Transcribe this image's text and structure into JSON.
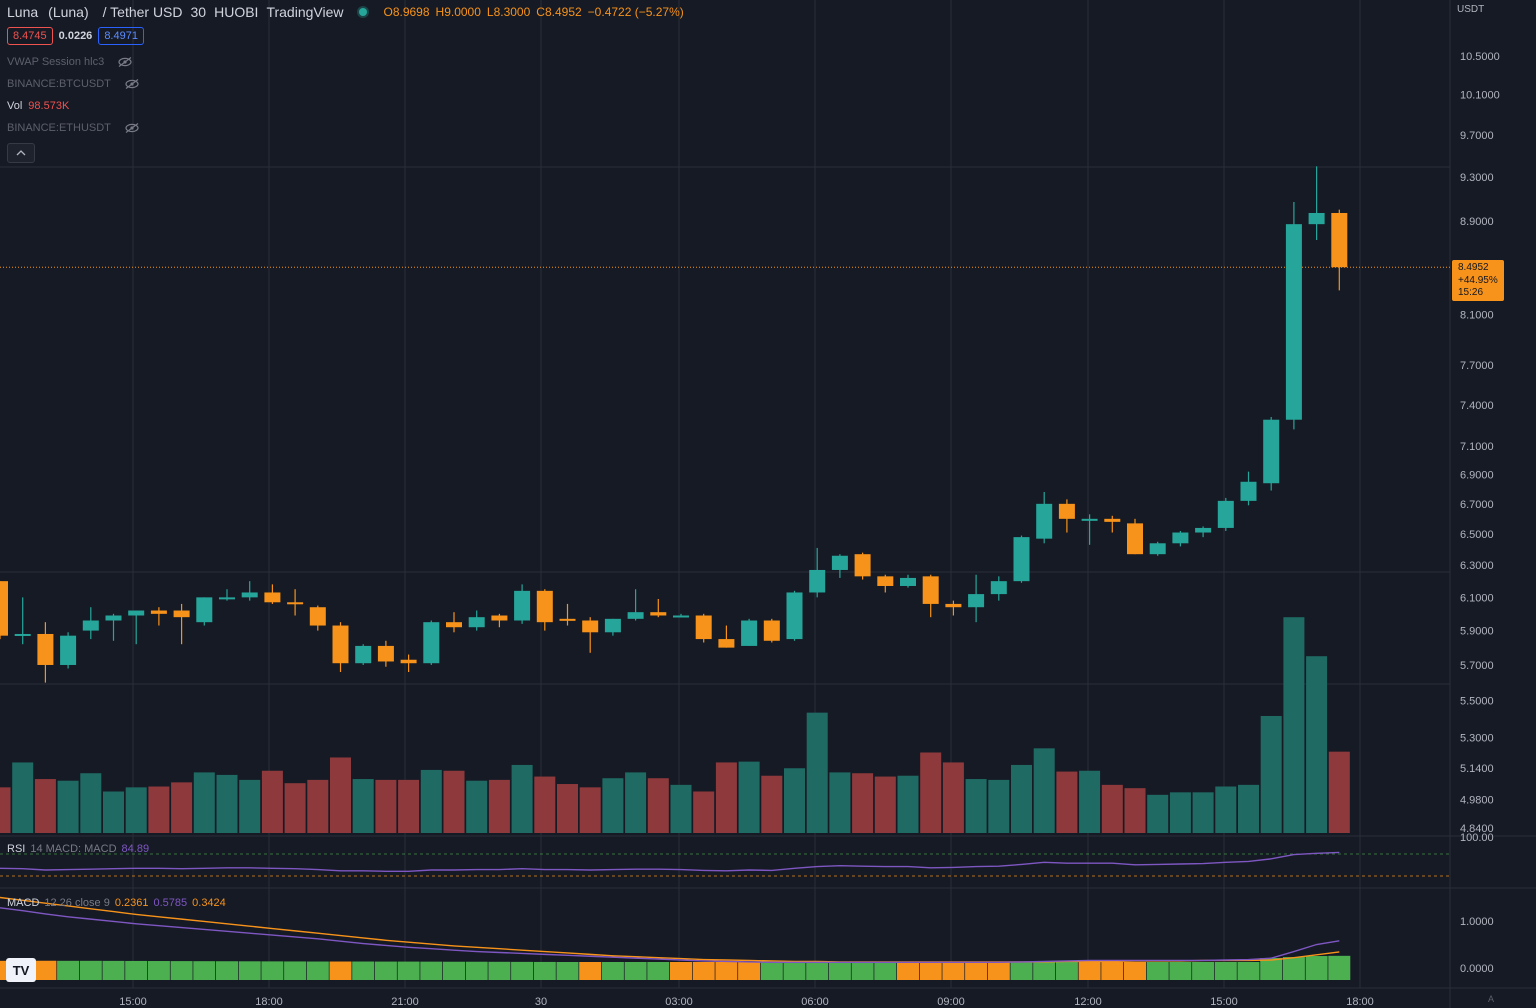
{
  "header": {
    "symbol": "Luna",
    "symbol_full": "(Luna)",
    "quote": "/ Tether USD",
    "interval": "30",
    "exchange": "HUOBI",
    "source": "TradingView",
    "ohlc": {
      "open": "O8.9698",
      "high": "H9.0000",
      "low": "L8.3000",
      "close": "C8.4952",
      "change": "−0.4722 (−5.27%)"
    },
    "bid": "8.4745",
    "spread": "0.0226",
    "ask": "8.4971"
  },
  "indicators": [
    {
      "label": "VWAP Session hlc3"
    },
    {
      "label": "BINANCE:BTCUSDT"
    },
    {
      "label": "BINANCE:ETHUSDT"
    }
  ],
  "volume_legend": {
    "label": "Vol",
    "value": "98.573K"
  },
  "rsi_legend": {
    "name": "RSI",
    "params": "14 MACD: MACD",
    "value": "84.89"
  },
  "macd_legend": {
    "name": "MACD",
    "params": "12 26 close 9",
    "hist": "0.2361",
    "macd": "0.5785",
    "signal": "0.3424"
  },
  "price_axis": {
    "currency": "USDT",
    "ticks": [
      "10.5000",
      "10.1000",
      "9.7000",
      "9.3000",
      "8.9000",
      "8.1000",
      "7.7000",
      "7.4000",
      "7.1000",
      "6.9000",
      "6.7000",
      "6.5000",
      "6.3000",
      "6.1000",
      "5.9000",
      "5.7000",
      "5.5000",
      "5.3000",
      "5.1400",
      "4.9800",
      "4.8400"
    ]
  },
  "rsi_axis": {
    "ticks": [
      "100.00"
    ]
  },
  "macd_axis": {
    "ticks": [
      "1.0000",
      "0.0000"
    ]
  },
  "time_axis": {
    "ticks": [
      "15:00",
      "18:00",
      "21:00",
      "30",
      "03:00",
      "06:00",
      "09:00",
      "12:00",
      "15:00",
      "18:00"
    ]
  },
  "last_price": {
    "price": "8.4952",
    "change": "+44.95%",
    "countdown": "15:26"
  },
  "auto_label": "A",
  "logo_text": "TV",
  "colors": {
    "up": "#26a69a",
    "down": "#f7931a",
    "vol_up": "#1f6b64",
    "vol_down": "#8e3a3c",
    "bg": "#161a25",
    "grid": "#2a2e39"
  },
  "chart_data": {
    "type": "candlestick",
    "interval": "30",
    "scale": "log",
    "y_range": [
      4.84,
      10.8
    ],
    "candles": [
      {
        "o": 6.2,
        "h": 6.2,
        "l": 5.85,
        "c": 5.87
      },
      {
        "o": 5.87,
        "h": 6.1,
        "l": 5.82,
        "c": 5.88
      },
      {
        "o": 5.88,
        "h": 5.95,
        "l": 5.6,
        "c": 5.7
      },
      {
        "o": 5.7,
        "h": 5.89,
        "l": 5.68,
        "c": 5.87
      },
      {
        "o": 5.9,
        "h": 6.04,
        "l": 5.85,
        "c": 5.96
      },
      {
        "o": 5.96,
        "h": 6.0,
        "l": 5.84,
        "c": 5.99
      },
      {
        "o": 5.99,
        "h": 6.02,
        "l": 5.82,
        "c": 6.02
      },
      {
        "o": 6.02,
        "h": 6.04,
        "l": 5.93,
        "c": 6.0
      },
      {
        "o": 6.02,
        "h": 6.06,
        "l": 5.82,
        "c": 5.98
      },
      {
        "o": 5.95,
        "h": 6.1,
        "l": 5.93,
        "c": 6.1
      },
      {
        "o": 6.1,
        "h": 6.15,
        "l": 6.08,
        "c": 6.1
      },
      {
        "o": 6.1,
        "h": 6.2,
        "l": 6.08,
        "c": 6.13
      },
      {
        "o": 6.13,
        "h": 6.18,
        "l": 6.06,
        "c": 6.07
      },
      {
        "o": 6.07,
        "h": 6.15,
        "l": 5.99,
        "c": 6.06
      },
      {
        "o": 6.04,
        "h": 6.05,
        "l": 5.9,
        "c": 5.93
      },
      {
        "o": 5.93,
        "h": 5.95,
        "l": 5.66,
        "c": 5.71
      },
      {
        "o": 5.71,
        "h": 5.82,
        "l": 5.7,
        "c": 5.81
      },
      {
        "o": 5.81,
        "h": 5.84,
        "l": 5.69,
        "c": 5.72
      },
      {
        "o": 5.73,
        "h": 5.76,
        "l": 5.66,
        "c": 5.71
      },
      {
        "o": 5.71,
        "h": 5.96,
        "l": 5.7,
        "c": 5.95
      },
      {
        "o": 5.95,
        "h": 6.01,
        "l": 5.89,
        "c": 5.92
      },
      {
        "o": 5.92,
        "h": 6.02,
        "l": 5.9,
        "c": 5.98
      },
      {
        "o": 5.99,
        "h": 6.0,
        "l": 5.92,
        "c": 5.96
      },
      {
        "o": 5.96,
        "h": 6.18,
        "l": 5.94,
        "c": 6.14
      },
      {
        "o": 6.14,
        "h": 6.15,
        "l": 5.9,
        "c": 5.95
      },
      {
        "o": 5.97,
        "h": 6.06,
        "l": 5.93,
        "c": 5.96
      },
      {
        "o": 5.96,
        "h": 5.98,
        "l": 5.77,
        "c": 5.89
      },
      {
        "o": 5.89,
        "h": 5.97,
        "l": 5.87,
        "c": 5.97
      },
      {
        "o": 5.97,
        "h": 6.15,
        "l": 5.96,
        "c": 6.01
      },
      {
        "o": 6.01,
        "h": 6.09,
        "l": 5.98,
        "c": 5.99
      },
      {
        "o": 5.99,
        "h": 6.0,
        "l": 5.99,
        "c": 5.99
      },
      {
        "o": 5.99,
        "h": 6.0,
        "l": 5.83,
        "c": 5.85
      },
      {
        "o": 5.85,
        "h": 5.93,
        "l": 5.8,
        "c": 5.8
      },
      {
        "o": 5.81,
        "h": 5.97,
        "l": 5.81,
        "c": 5.96
      },
      {
        "o": 5.96,
        "h": 5.97,
        "l": 5.83,
        "c": 5.84
      },
      {
        "o": 5.85,
        "h": 6.14,
        "l": 5.84,
        "c": 6.13
      },
      {
        "o": 6.13,
        "h": 6.41,
        "l": 6.1,
        "c": 6.27
      },
      {
        "o": 6.27,
        "h": 6.37,
        "l": 6.22,
        "c": 6.36
      },
      {
        "o": 6.37,
        "h": 6.38,
        "l": 6.21,
        "c": 6.23
      },
      {
        "o": 6.23,
        "h": 6.24,
        "l": 6.13,
        "c": 6.17
      },
      {
        "o": 6.17,
        "h": 6.24,
        "l": 6.16,
        "c": 6.22
      },
      {
        "o": 6.23,
        "h": 6.24,
        "l": 5.98,
        "c": 6.06
      },
      {
        "o": 6.06,
        "h": 6.08,
        "l": 5.99,
        "c": 6.04
      },
      {
        "o": 6.04,
        "h": 6.24,
        "l": 5.95,
        "c": 6.12
      },
      {
        "o": 6.12,
        "h": 6.23,
        "l": 6.08,
        "c": 6.2
      },
      {
        "o": 6.2,
        "h": 6.49,
        "l": 6.19,
        "c": 6.48
      },
      {
        "o": 6.47,
        "h": 6.78,
        "l": 6.44,
        "c": 6.7
      },
      {
        "o": 6.7,
        "h": 6.73,
        "l": 6.51,
        "c": 6.6
      },
      {
        "o": 6.6,
        "h": 6.63,
        "l": 6.43,
        "c": 6.6
      },
      {
        "o": 6.6,
        "h": 6.62,
        "l": 6.51,
        "c": 6.58
      },
      {
        "o": 6.57,
        "h": 6.6,
        "l": 6.37,
        "c": 6.37
      },
      {
        "o": 6.37,
        "h": 6.45,
        "l": 6.36,
        "c": 6.44
      },
      {
        "o": 6.44,
        "h": 6.52,
        "l": 6.42,
        "c": 6.51
      },
      {
        "o": 6.51,
        "h": 6.55,
        "l": 6.48,
        "c": 6.54
      },
      {
        "o": 6.54,
        "h": 6.74,
        "l": 6.52,
        "c": 6.72
      },
      {
        "o": 6.72,
        "h": 6.92,
        "l": 6.69,
        "c": 6.85
      },
      {
        "o": 6.84,
        "h": 7.31,
        "l": 6.79,
        "c": 7.29
      },
      {
        "o": 7.29,
        "h": 9.07,
        "l": 7.22,
        "c": 8.87
      },
      {
        "o": 8.87,
        "h": 9.4,
        "l": 8.73,
        "c": 8.97
      },
      {
        "o": 8.97,
        "h": 9.0,
        "l": 8.3,
        "c": 8.4952
      }
    ],
    "volume": [
      0.55,
      0.85,
      0.65,
      0.63,
      0.72,
      0.5,
      0.55,
      0.56,
      0.61,
      0.73,
      0.7,
      0.64,
      0.75,
      0.6,
      0.64,
      0.91,
      0.65,
      0.64,
      0.64,
      0.76,
      0.75,
      0.63,
      0.64,
      0.82,
      0.68,
      0.59,
      0.55,
      0.66,
      0.73,
      0.66,
      0.58,
      0.5,
      0.85,
      0.86,
      0.69,
      0.78,
      1.45,
      0.73,
      0.72,
      0.68,
      0.69,
      0.97,
      0.85,
      0.65,
      0.64,
      0.82,
      1.02,
      0.74,
      0.75,
      0.58,
      0.54,
      0.46,
      0.49,
      0.49,
      0.56,
      0.58,
      1.41,
      2.6,
      2.13,
      0.98
    ],
    "rsi": [
      48,
      47,
      44,
      45,
      46,
      47,
      48,
      48,
      47,
      48,
      49,
      49,
      48,
      47,
      45,
      42,
      42,
      41,
      41,
      44,
      44,
      45,
      45,
      47,
      45,
      45,
      44,
      45,
      46,
      46,
      45,
      43,
      42,
      44,
      43,
      48,
      52,
      54,
      53,
      52,
      52,
      49,
      50,
      52,
      53,
      57,
      62,
      60,
      60,
      60,
      56,
      57,
      58,
      59,
      62,
      64,
      70,
      80,
      83,
      84.89
    ],
    "macd": [
      1.28,
      1.22,
      1.15,
      1.09,
      1.04,
      0.99,
      0.94,
      0.9,
      0.86,
      0.82,
      0.78,
      0.74,
      0.7,
      0.66,
      0.62,
      0.57,
      0.52,
      0.48,
      0.44,
      0.41,
      0.38,
      0.35,
      0.33,
      0.31,
      0.29,
      0.27,
      0.25,
      0.23,
      0.21,
      0.19,
      0.17,
      0.15,
      0.14,
      0.13,
      0.12,
      0.12,
      0.12,
      0.12,
      0.12,
      0.12,
      0.12,
      0.12,
      0.12,
      0.12,
      0.12,
      0.13,
      0.14,
      0.15,
      0.16,
      0.16,
      0.16,
      0.16,
      0.16,
      0.16,
      0.17,
      0.18,
      0.21,
      0.35,
      0.5,
      0.5785
    ],
    "signal": [
      1.5,
      1.44,
      1.38,
      1.32,
      1.26,
      1.2,
      1.14,
      1.09,
      1.04,
      0.99,
      0.94,
      0.89,
      0.84,
      0.79,
      0.74,
      0.69,
      0.64,
      0.59,
      0.55,
      0.51,
      0.47,
      0.44,
      0.41,
      0.38,
      0.35,
      0.32,
      0.29,
      0.26,
      0.24,
      0.22,
      0.2,
      0.18,
      0.17,
      0.16,
      0.15,
      0.14,
      0.14,
      0.13,
      0.13,
      0.13,
      0.13,
      0.13,
      0.13,
      0.13,
      0.13,
      0.13,
      0.13,
      0.14,
      0.14,
      0.14,
      0.15,
      0.15,
      0.15,
      0.16,
      0.16,
      0.16,
      0.17,
      0.22,
      0.28,
      0.3424
    ],
    "hist": [
      -0.22,
      -0.22,
      -0.23,
      0.22,
      0.22,
      0.21,
      0.2,
      0.19,
      0.18,
      0.17,
      0.16,
      0.15,
      0.14,
      0.13,
      0.12,
      -0.12,
      0.12,
      0.11,
      0.11,
      0.1,
      0.09,
      0.09,
      0.08,
      0.07,
      0.06,
      0.05,
      -0.04,
      0.03,
      0.03,
      0.03,
      -0.03,
      -0.03,
      -0.03,
      -0.03,
      0.02,
      0.02,
      0.01,
      0.01,
      0.01,
      0.01,
      -0.01,
      -0.01,
      -0.01,
      -0.01,
      -0.01,
      0.01,
      0.02,
      0.03,
      -0.03,
      -0.02,
      -0.02,
      0.01,
      0.01,
      0.01,
      0.02,
      0.02,
      0.04,
      0.13,
      0.22,
      0.2361
    ]
  }
}
